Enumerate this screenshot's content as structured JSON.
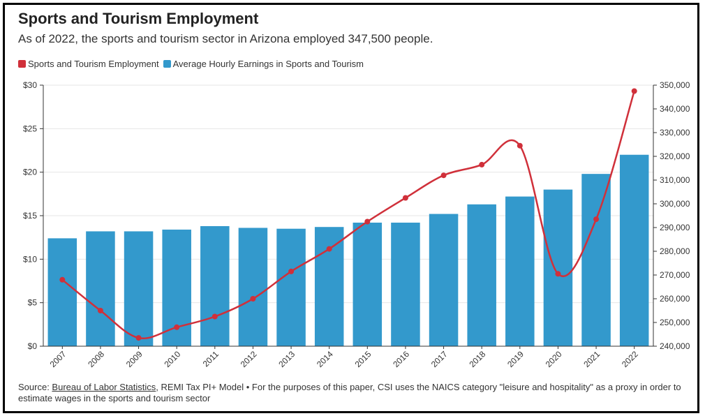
{
  "header": {
    "title": "Sports and Tourism Employment",
    "subtitle": "As of 2022, the sports and tourism sector in Arizona employed 347,500 people."
  },
  "source": {
    "prefix": "Source: ",
    "link_text": "Bureau of Labor Statistics",
    "rest": ", REMI Tax PI+ Model • For the purposes of this paper, CSI uses the NAICS category \"leisure and hospitality\" as a proxy in order to estimate wages in the sports and tourism sector"
  },
  "colors": {
    "line": "#d0303a",
    "bar": "#3399cc",
    "grid": "#e6e6e6",
    "axis": "#333333"
  },
  "chart_data": {
    "type": "bar",
    "categories": [
      "2007",
      "2008",
      "2009",
      "2010",
      "2011",
      "2012",
      "2013",
      "2014",
      "2015",
      "2016",
      "2017",
      "2018",
      "2019",
      "2020",
      "2021",
      "2022"
    ],
    "series": [
      {
        "name": "Sports and Tourism Employment",
        "type": "line",
        "axis": "right",
        "color": "#d0303a",
        "values": [
          268000,
          255000,
          243500,
          248000,
          252500,
          260000,
          271500,
          281000,
          292500,
          302500,
          312000,
          316500,
          324500,
          270500,
          293500,
          347500
        ]
      },
      {
        "name": "Average Hourly Earnings in Sports and Tourism",
        "type": "bar",
        "axis": "left",
        "color": "#3399cc",
        "values": [
          12.4,
          13.2,
          13.2,
          13.4,
          13.8,
          13.6,
          13.5,
          13.7,
          14.2,
          14.2,
          15.2,
          16.3,
          17.2,
          18.0,
          19.8,
          22.0
        ]
      }
    ],
    "y_left": {
      "min": 0,
      "max": 30,
      "ticks": [
        "$0",
        "$5",
        "$10",
        "$15",
        "$20",
        "$25",
        "$30"
      ]
    },
    "y_right": {
      "min": 240000,
      "max": 350000,
      "ticks": [
        "240,000",
        "250,000",
        "260,000",
        "270,000",
        "280,000",
        "290,000",
        "300,000",
        "310,000",
        "320,000",
        "330,000",
        "340,000",
        "350,000"
      ]
    },
    "grid": true,
    "legend_position": "top-left"
  }
}
